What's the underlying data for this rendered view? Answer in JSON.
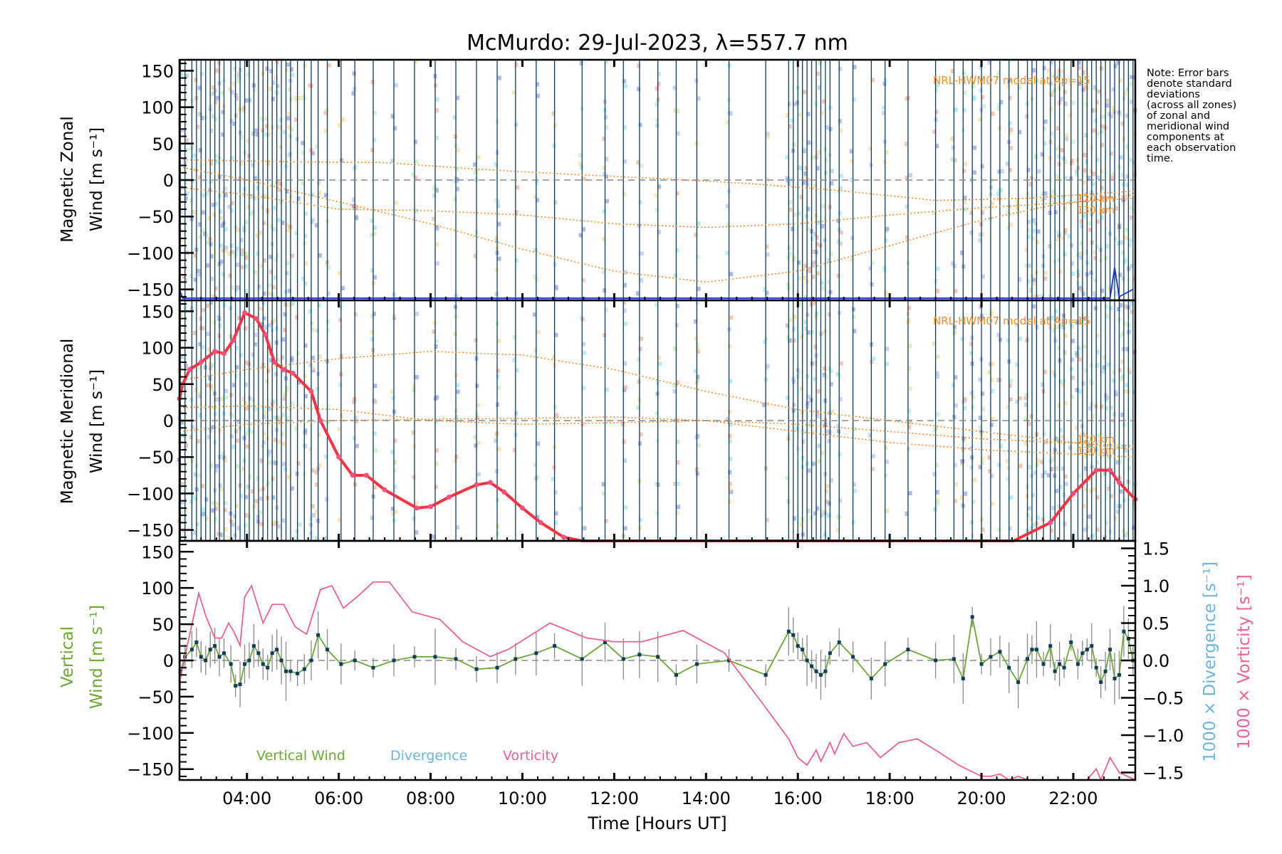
{
  "chart_data": [
    {
      "type": "line",
      "panel": "top",
      "title": "McMurdo: 29-Jul-2023, λ=557.7 nm",
      "ylabel_line1": "Magnetic Zonal",
      "ylabel_line2": "Wind [m s⁻¹]",
      "ylim": [
        -165,
        165
      ],
      "yticks": [
        150,
        100,
        50,
        0,
        -50,
        -100,
        -150
      ],
      "annotation": "NRL-HWM07 model at Ap=15",
      "model_labels": [
        "120 km",
        "130 km"
      ],
      "model_curves": [
        {
          "name": "model-a",
          "x": [
            2.53,
            5,
            7,
            9,
            11,
            13,
            15,
            17,
            19,
            21,
            23.35
          ],
          "y": [
            28,
            25,
            24,
            15,
            8,
            2,
            -5,
            -15,
            -28,
            -25,
            -15
          ]
        },
        {
          "name": "model-b",
          "x": [
            2.53,
            4,
            6,
            8,
            10,
            12,
            14,
            16,
            18,
            20,
            23.35
          ],
          "y": [
            -10,
            -20,
            -40,
            -42,
            -48,
            -60,
            -65,
            -60,
            -48,
            -38,
            -25
          ]
        },
        {
          "name": "model-c",
          "x": [
            2.53,
            4,
            6,
            8,
            10,
            12,
            14,
            16,
            18,
            20,
            21.5,
            23.35
          ],
          "y": [
            18,
            0,
            -30,
            -60,
            -95,
            -125,
            -140,
            -125,
            -90,
            -55,
            -35,
            -20
          ]
        }
      ],
      "series": [
        {
          "name": "Zonal wind",
          "color": "#1a2fe0",
          "x": [
            2.53,
            2.6,
            22.8,
            22.9,
            23.0,
            23.3
          ],
          "y": [
            -150,
            -162,
            -162,
            -120,
            -160,
            -150
          ]
        }
      ]
    },
    {
      "type": "line",
      "panel": "middle",
      "ylabel_line1": "Magnetic Meridional",
      "ylabel_line2": "Wind [m s⁻¹]",
      "ylim": [
        -165,
        165
      ],
      "yticks": [
        150,
        100,
        50,
        0,
        -50,
        -100,
        -150
      ],
      "annotation": "NRL-HWM07 model at Ap=15",
      "model_labels": [
        "120 km",
        "130 km"
      ],
      "model_curves": [
        {
          "name": "model-a",
          "x": [
            2.53,
            4,
            6,
            8,
            10,
            12,
            14,
            16,
            18,
            20,
            23.35
          ],
          "y": [
            55,
            70,
            85,
            95,
            90,
            70,
            40,
            15,
            0,
            -15,
            -40
          ]
        },
        {
          "name": "model-b",
          "x": [
            2.53,
            4,
            6,
            8,
            10,
            12,
            14,
            16,
            18,
            20,
            23.35
          ],
          "y": [
            18,
            20,
            15,
            0,
            -5,
            -3,
            0,
            -5,
            -15,
            -25,
            -35
          ]
        },
        {
          "name": "model-c",
          "x": [
            2.53,
            4,
            6,
            8,
            10,
            12,
            14,
            16,
            18,
            20,
            23.35
          ],
          "y": [
            -15,
            -5,
            0,
            2,
            3,
            5,
            0,
            -15,
            -30,
            -40,
            -50
          ]
        }
      ],
      "series": [
        {
          "name": "Meridional wind",
          "color": "#ff3040",
          "x": [
            2.53,
            2.6,
            2.75,
            3.0,
            3.3,
            3.5,
            3.7,
            3.95,
            4.2,
            4.4,
            4.6,
            4.8,
            5.0,
            5.4,
            5.6,
            6.0,
            6.3,
            6.6,
            7.0,
            7.7,
            8.0,
            8.4,
            9.0,
            9.3,
            9.6,
            10.0,
            10.4,
            10.9,
            11.3,
            20.7,
            21.5,
            22.0,
            22.5,
            22.8,
            23.0,
            23.35
          ],
          "y": [
            30,
            50,
            70,
            80,
            95,
            92,
            110,
            148,
            140,
            118,
            80,
            70,
            65,
            40,
            0,
            -50,
            -75,
            -75,
            -95,
            -120,
            -118,
            -105,
            -88,
            -85,
            -98,
            -120,
            -140,
            -160,
            -170,
            -170,
            -140,
            -100,
            -68,
            -68,
            -85,
            -108
          ]
        }
      ]
    },
    {
      "type": "line",
      "panel": "bottom",
      "ylabel_line1": "Vertical",
      "ylabel_line2": "Wind [m s⁻¹]",
      "ylim": [
        -165,
        165
      ],
      "yticks": [
        150,
        100,
        50,
        0,
        -50,
        -100,
        -150
      ],
      "y2label_divergence": "1000 × Divergence [s⁻¹]",
      "y2label_vorticity": "1000 × Vorticity [s⁻¹]",
      "y2lim": [
        -1.6,
        1.6
      ],
      "y2ticks": [
        "1.5",
        "1.0",
        "0.5",
        "0.0",
        "-0.5",
        "-1.0",
        "-1.5"
      ],
      "xlabel": "Time [Hours UT]",
      "xlim": [
        2.53,
        23.35
      ],
      "xticks": [
        "04:00",
        "06:00",
        "08:00",
        "10:00",
        "12:00",
        "14:00",
        "16:00",
        "18:00",
        "20:00",
        "22:00"
      ],
      "xtick_values": [
        4,
        6,
        8,
        10,
        12,
        14,
        16,
        18,
        20,
        22
      ],
      "legend": [
        "Vertical Wind",
        "Divergence",
        "Vorticity"
      ],
      "legend_position": "bottom-left",
      "series": [
        {
          "name": "Vertical Wind",
          "color": "#6aa832",
          "x": [
            2.55,
            2.65,
            2.8,
            2.9,
            3.0,
            3.1,
            3.2,
            3.3,
            3.4,
            3.5,
            3.65,
            3.75,
            3.85,
            3.95,
            4.05,
            4.15,
            4.25,
            4.35,
            4.45,
            4.55,
            4.65,
            4.75,
            4.85,
            4.95,
            5.1,
            5.25,
            5.4,
            5.55,
            5.75,
            6.05,
            6.35,
            6.75,
            7.2,
            7.65,
            8.1,
            8.55,
            9.0,
            9.45,
            9.85,
            10.3,
            10.7,
            11.3,
            11.8,
            12.2,
            12.55,
            12.95,
            13.35,
            13.8,
            14.5,
            15.3,
            15.8,
            15.9,
            16.0,
            16.1,
            16.2,
            16.3,
            16.4,
            16.5,
            16.6,
            16.7,
            16.9,
            17.2,
            17.6,
            17.9,
            18.4,
            19.0,
            19.4,
            19.6,
            19.8,
            20.0,
            20.2,
            20.4,
            20.6,
            20.8,
            21.0,
            21.1,
            21.2,
            21.35,
            21.5,
            21.6,
            21.7,
            21.8,
            21.95,
            22.1,
            22.2,
            22.3,
            22.4,
            22.5,
            22.6,
            22.7,
            22.8,
            22.9,
            23.0,
            23.1,
            23.2,
            23.3
          ],
          "y": [
            -15,
            5,
            15,
            25,
            5,
            0,
            15,
            20,
            5,
            10,
            -5,
            -35,
            -33,
            -5,
            0,
            20,
            10,
            -5,
            -10,
            10,
            15,
            0,
            -15,
            -15,
            -18,
            -12,
            0,
            35,
            15,
            -5,
            0,
            -10,
            0,
            5,
            5,
            2,
            -12,
            -10,
            2,
            10,
            20,
            2,
            25,
            2,
            8,
            5,
            -20,
            -5,
            0,
            -20,
            40,
            35,
            20,
            15,
            0,
            -8,
            -15,
            -20,
            -15,
            10,
            25,
            5,
            -25,
            -5,
            15,
            0,
            2,
            -25,
            60,
            -5,
            5,
            12,
            -10,
            -30,
            2,
            15,
            15,
            -5,
            20,
            -15,
            -5,
            -10,
            25,
            -5,
            10,
            15,
            20,
            -10,
            -30,
            -15,
            15,
            -25,
            -20,
            40,
            30,
            0
          ]
        },
        {
          "name": "Vorticity",
          "color": "#f06090",
          "axis": "y2",
          "x": [
            2.53,
            2.7,
            2.95,
            3.1,
            3.3,
            3.45,
            3.6,
            3.7,
            3.85,
            3.95,
            4.1,
            4.35,
            4.55,
            4.8,
            5.05,
            5.3,
            5.6,
            5.85,
            6.1,
            6.4,
            6.75,
            7.1,
            7.6,
            8.2,
            8.7,
            9.3,
            9.7,
            10.6,
            11.4,
            12.0,
            12.6,
            13.5,
            14.4,
            15.2,
            15.8,
            16.0,
            16.2,
            16.4,
            16.5,
            16.7,
            16.8,
            17.0,
            17.2,
            17.5,
            17.8,
            18.2,
            18.6,
            19.0,
            19.5,
            20.0,
            20.2,
            20.4,
            20.6,
            20.8,
            21.0,
            21.5,
            22.0,
            22.3,
            22.5,
            22.6,
            22.8,
            23.0,
            23.35
          ],
          "y": [
            -0.3,
            0.2,
            0.9,
            0.6,
            0.3,
            0.3,
            0.5,
            0.4,
            0.2,
            0.85,
            1.0,
            0.5,
            0.75,
            0.75,
            0.45,
            0.35,
            0.95,
            1.0,
            0.7,
            0.85,
            1.05,
            1.05,
            0.65,
            0.55,
            0.25,
            0.05,
            0.15,
            0.5,
            0.3,
            0.25,
            0.25,
            0.4,
            0.1,
            -0.55,
            -1.05,
            -1.3,
            -1.4,
            -1.2,
            -1.35,
            -1.1,
            -1.25,
            -0.98,
            -1.15,
            -1.1,
            -1.3,
            -1.1,
            -1.05,
            -1.2,
            -1.4,
            -1.55,
            -1.55,
            -1.52,
            -1.6,
            -1.55,
            -1.6,
            -1.65,
            -1.65,
            -1.6,
            -1.45,
            -1.65,
            -1.3,
            -1.5,
            -1.6
          ]
        }
      ]
    }
  ],
  "note": "Note: Error bars\ndenote standard\ndeviations\n(across all zones)\nof zonal and\nmeridional wind\ncomponents at\neach observation\ntime.",
  "colors": {
    "model": "#ff8c1a",
    "obs_lines": "#0d3d5c",
    "vertical": "#6aa832",
    "divergence": "#6cb4dc",
    "vorticity": "#f06090",
    "meridional": "#ff3040",
    "zonal": "#1a2fe0"
  }
}
